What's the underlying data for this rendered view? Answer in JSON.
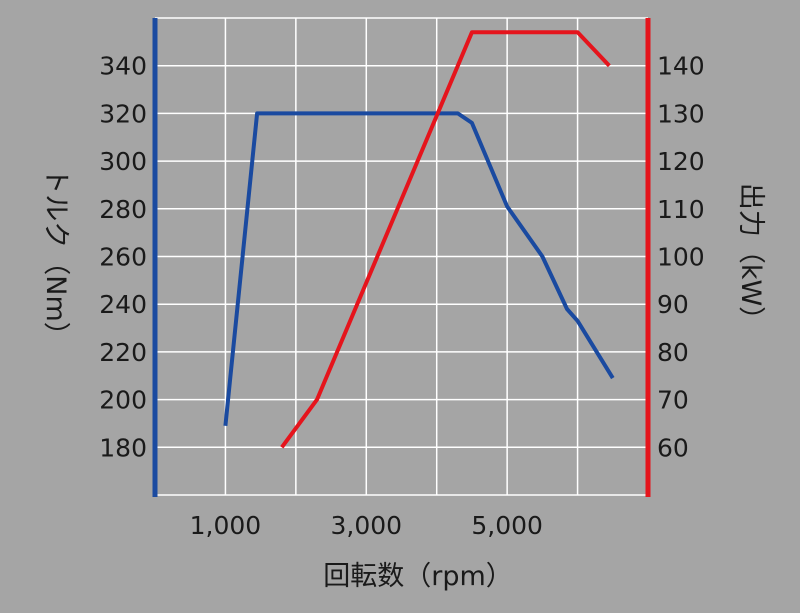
{
  "chart_data": {
    "type": "line",
    "title": "",
    "xlabel": "回転数（rpm）",
    "ylabel_left": "トルク（Nm）",
    "ylabel_right": "出力（kW）",
    "x_tick_labels": [
      "1,000",
      "3,000",
      "5,000"
    ],
    "x_tick_values": [
      1000,
      3000,
      5000
    ],
    "xlim": [
      0,
      7000
    ],
    "ylim_left": [
      160,
      360
    ],
    "ylim_right": [
      50,
      150
    ],
    "y_left_ticks": [
      180,
      200,
      220,
      240,
      260,
      280,
      300,
      320,
      340
    ],
    "y_right_ticks": [
      60,
      70,
      80,
      90,
      100,
      110,
      120,
      130,
      140
    ],
    "grid": true,
    "colors": {
      "background": "#a5a5a5",
      "grid": "#ffffff",
      "torque": "#1a4aa0",
      "power": "#e5141c"
    },
    "series": [
      {
        "axis": "left",
        "color": "#1a4aa0",
        "x": [
          1000,
          1450,
          4300,
          4500,
          5000,
          5500,
          5850,
          6000,
          6500
        ],
        "y": [
          189,
          320,
          320,
          316,
          281,
          260,
          238,
          233,
          209
        ]
      },
      {
        "axis": "right",
        "color": "#e5141c",
        "x": [
          1800,
          2300,
          4500,
          5000,
          6000,
          6450
        ],
        "y": [
          60,
          70,
          147,
          147,
          147,
          140
        ]
      }
    ]
  }
}
